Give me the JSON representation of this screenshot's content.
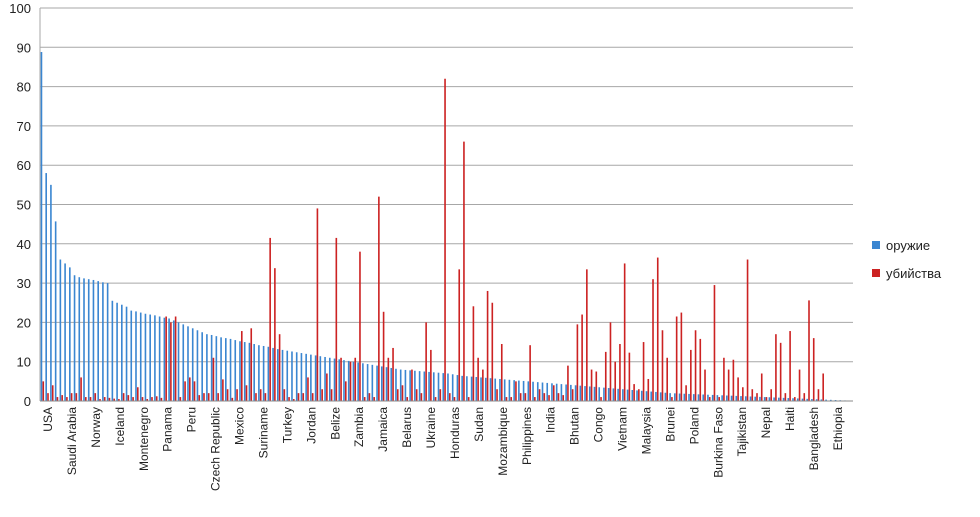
{
  "chart_data": {
    "type": "bar",
    "ylim": [
      0,
      100
    ],
    "yticks": [
      0,
      10,
      20,
      30,
      40,
      50,
      60,
      70,
      80,
      90,
      100
    ],
    "grid": true,
    "legend_position": "right",
    "x_tick_labels": [
      "USA",
      "Saudi Arabia",
      "Norway",
      "Iceland",
      "Montenegro",
      "Panama",
      "Peru",
      "Czech Republic",
      "Mexico",
      "Suriname",
      "Turkey",
      "Jordan",
      "Belize",
      "Zambia",
      "Jamaica",
      "Belarus",
      "Ukraine",
      "Honduras",
      "Sudan",
      "Mozambique",
      "Philippines",
      "India",
      "Bhutan",
      "Congo",
      "Vietnam",
      "Malaysia",
      "Brunei",
      "Poland",
      "Burkina Faso",
      "Tajikistan",
      "Nepal",
      "Haiti",
      "Bangladesh",
      "Ethiopia"
    ],
    "series": [
      {
        "name": "оружие",
        "color": "#3a86d1",
        "values": [
          88.8,
          58,
          55,
          45.7,
          36,
          35,
          34,
          32,
          31.5,
          31.2,
          31,
          30.8,
          30.5,
          30.2,
          30,
          25.5,
          25,
          24.5,
          24,
          23,
          22.8,
          22.5,
          22.2,
          22,
          21.8,
          21.5,
          21.2,
          21,
          20.5,
          20,
          19.5,
          19,
          18.5,
          18,
          17.5,
          17,
          16.8,
          16.5,
          16.2,
          16,
          15.8,
          15.5,
          15.2,
          15,
          14.8,
          14.5,
          14.2,
          14,
          13.8,
          13.5,
          13.2,
          13,
          12.8,
          12.6,
          12.4,
          12.2,
          12,
          11.8,
          11.6,
          11.4,
          11.2,
          11,
          10.8,
          10.6,
          10.4,
          10.2,
          10,
          9.8,
          9.6,
          9.4,
          9.2,
          9,
          8.8,
          8.6,
          8.4,
          8.2,
          8,
          7.9,
          7.8,
          7.7,
          7.6,
          7.5,
          7.4,
          7.3,
          7.2,
          7.1,
          7,
          6.8,
          6.6,
          6.4,
          6.3,
          6.2,
          6.1,
          6,
          5.9,
          5.8,
          5.7,
          5.6,
          5.5,
          5.4,
          5.3,
          5.2,
          5.1,
          5,
          4.9,
          4.8,
          4.7,
          4.6,
          4.5,
          4.4,
          4.3,
          4.2,
          4.1,
          4,
          3.9,
          3.8,
          3.7,
          3.6,
          3.5,
          3.4,
          3.3,
          3.2,
          3.1,
          3,
          2.9,
          2.8,
          2.7,
          2.6,
          2.5,
          2.4,
          2.3,
          2.2,
          2.1,
          2,
          1.95,
          1.9,
          1.85,
          1.8,
          1.75,
          1.7,
          1.65,
          1.6,
          1.55,
          1.5,
          1.45,
          1.4,
          1.35,
          1.3,
          1.25,
          1.2,
          1.15,
          1.1,
          1.05,
          1,
          0.95,
          0.9,
          0.85,
          0.8,
          0.75,
          0.7,
          0.65,
          0.6,
          0.55,
          0.5,
          0.45,
          0.4,
          0.35,
          0.3,
          0.25,
          0.2,
          0.15,
          0.1
        ]
      },
      {
        "name": "убийства",
        "color": "#cc2222",
        "values": [
          5,
          2,
          4,
          1,
          1.5,
          1,
          2,
          2,
          6,
          1,
          1,
          2,
          0.5,
          1,
          0.8,
          0.6,
          0.5,
          2,
          1.5,
          1,
          3.5,
          1,
          0.5,
          1,
          1.2,
          0.8,
          21.5,
          20,
          21.5,
          1,
          5,
          6,
          5,
          1.5,
          2,
          2,
          11,
          2,
          5.5,
          3,
          0.8,
          3,
          17.8,
          4,
          18.5,
          2,
          3,
          2,
          41.5,
          33.8,
          17,
          3,
          1,
          0.5,
          2,
          2,
          6,
          2,
          49,
          3,
          7,
          3,
          41.5,
          11,
          5,
          10,
          11,
          38,
          1,
          2,
          1,
          52,
          22.7,
          11,
          13.5,
          3,
          4,
          1,
          8,
          3,
          2,
          20,
          13,
          1,
          3,
          82,
          2,
          1,
          33.5,
          66,
          1,
          24.1,
          11,
          8,
          28,
          25,
          3,
          14.5,
          1,
          1,
          5,
          2,
          2,
          14.2,
          1,
          3,
          2,
          1.5,
          4,
          2,
          1.5,
          9,
          3,
          19.5,
          22,
          33.5,
          8,
          7.5,
          1,
          12.5,
          20,
          10,
          14.5,
          35,
          12.3,
          4.3,
          3,
          15,
          5.6,
          31,
          36.5,
          18,
          11,
          1,
          21.5,
          22.5,
          4,
          13,
          18,
          15.8,
          8,
          1,
          29.5,
          1,
          11,
          8,
          10.5,
          6,
          3.5,
          36,
          3,
          2,
          7,
          1,
          3,
          17,
          14.8,
          2,
          17.8,
          1,
          8,
          2,
          25.6,
          16,
          3,
          7
        ]
      }
    ]
  }
}
